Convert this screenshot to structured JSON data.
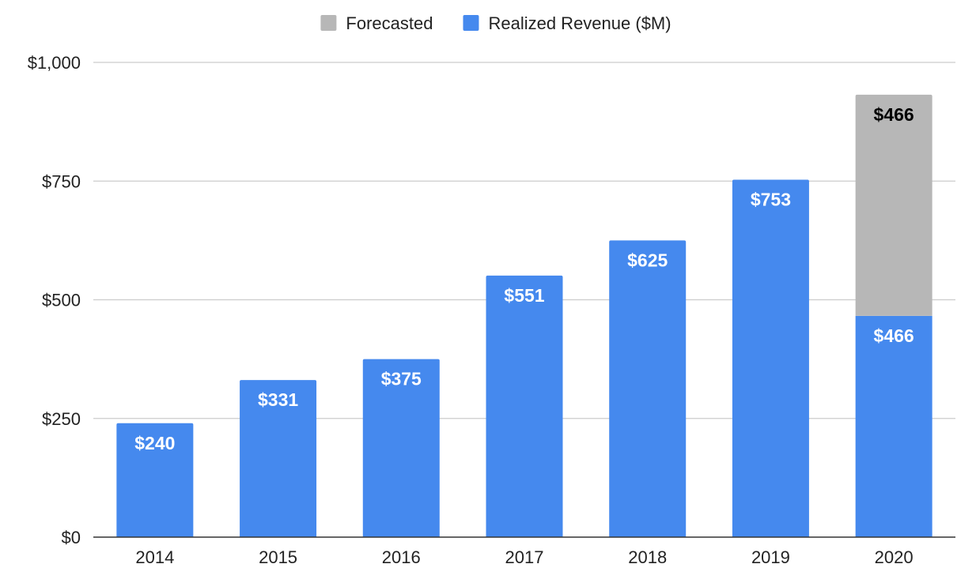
{
  "chart_data": {
    "type": "bar",
    "stacked": true,
    "categories": [
      "2014",
      "2015",
      "2016",
      "2017",
      "2018",
      "2019",
      "2020"
    ],
    "series": [
      {
        "name": "Realized Revenue ($M)",
        "color": "#4589ee",
        "label_color": "#ffffff",
        "values": [
          240,
          331,
          375,
          551,
          625,
          753,
          466
        ],
        "labels": [
          "$240",
          "$331",
          "$375",
          "$551",
          "$625",
          "$753",
          "$466"
        ]
      },
      {
        "name": "Forecasted",
        "color": "#b7b7b7",
        "label_color": "#000000",
        "values": [
          0,
          0,
          0,
          0,
          0,
          0,
          466
        ],
        "labels": [
          "",
          "",
          "",
          "",
          "",
          "",
          "$466"
        ]
      }
    ],
    "legend_order": [
      "Forecasted",
      "Realized Revenue ($M)"
    ],
    "legend_position": "top-center",
    "ylim": [
      0,
      1000
    ],
    "yticks": [
      0,
      250,
      500,
      750,
      1000
    ],
    "ytick_labels": [
      "$0",
      "$250",
      "$500",
      "$750",
      "$1,000"
    ],
    "grid": true,
    "title": "",
    "xlabel": "",
    "ylabel": ""
  }
}
